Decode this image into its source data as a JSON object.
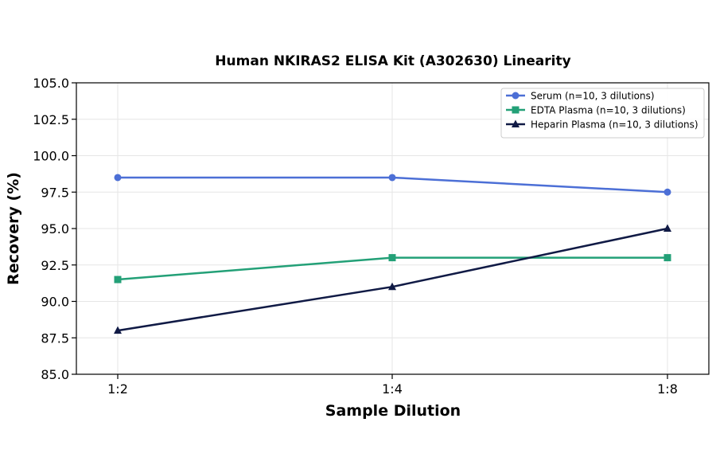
{
  "chart_data": {
    "type": "line",
    "title": "Human NKIRAS2 ELISA Kit (A302630) Linearity",
    "xlabel": "Sample Dilution",
    "ylabel": "Recovery (%)",
    "categories": [
      "1:2",
      "1:4",
      "1:8"
    ],
    "ylim": [
      85.0,
      105.0
    ],
    "yticks": [
      "85.0",
      "87.5",
      "90.0",
      "92.5",
      "95.0",
      "97.5",
      "100.0",
      "102.5",
      "105.0"
    ],
    "grid": true,
    "legend_position": "top-right",
    "series": [
      {
        "name": "Serum (n=10, 3 dilutions)",
        "values": [
          98.5,
          98.5,
          97.5
        ],
        "color": "#4c6fd6",
        "marker": "circle"
      },
      {
        "name": "EDTA Plasma (n=10, 3 dilutions)",
        "values": [
          91.5,
          93.0,
          93.0
        ],
        "color": "#23a077",
        "marker": "square"
      },
      {
        "name": "Heparin Plasma (n=10, 3 dilutions)",
        "values": [
          88.0,
          91.0,
          95.0
        ],
        "color": "#101a45",
        "marker": "triangle"
      }
    ]
  }
}
